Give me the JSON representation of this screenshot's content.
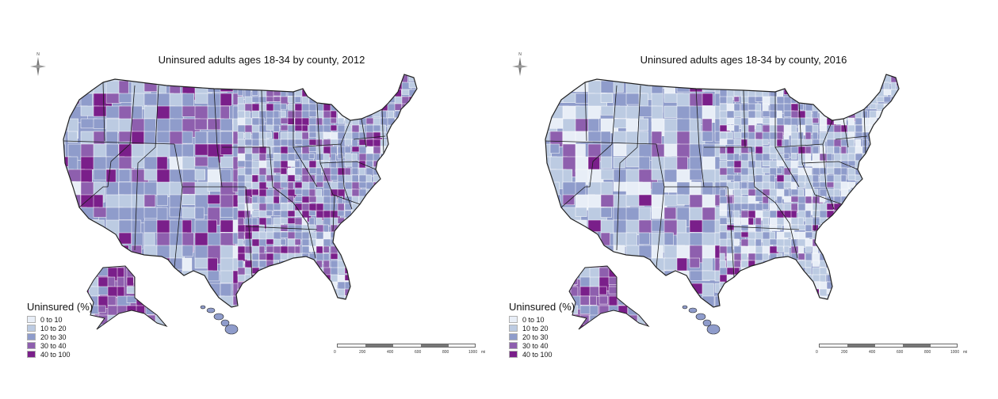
{
  "panels": [
    {
      "title": "Uninsured adults ages 18-34 by county, 2012",
      "north_label": "N",
      "legend_title": "Uninsured (%)",
      "legend_items": [
        {
          "label": "0 to 10",
          "color": "#e8eef7"
        },
        {
          "label": "10 to 20",
          "color": "#bccbe2"
        },
        {
          "label": "20 to 30",
          "color": "#8f9ccb"
        },
        {
          "label": "30 to 40",
          "color": "#8e5fae"
        },
        {
          "label": "40 to 100",
          "color": "#7a1f8a"
        }
      ],
      "scale_labels": [
        "0",
        "200",
        "400",
        "600",
        "800",
        "1000",
        "mi"
      ],
      "county_mix": [
        0.03,
        0.27,
        0.34,
        0.2,
        0.16
      ]
    },
    {
      "title": "Uninsured adults ages 18-34 by county, 2016",
      "north_label": "N",
      "legend_title": "Uninsured (%)",
      "legend_items": [
        {
          "label": "0 to 10",
          "color": "#e8eef7"
        },
        {
          "label": "10 to 20",
          "color": "#bccbe2"
        },
        {
          "label": "20 to 30",
          "color": "#8f9ccb"
        },
        {
          "label": "30 to 40",
          "color": "#8e5fae"
        },
        {
          "label": "40 to 100",
          "color": "#7a1f8a"
        }
      ],
      "scale_labels": [
        "0",
        "200",
        "400",
        "600",
        "800",
        "1000",
        "mi"
      ],
      "county_mix": [
        0.18,
        0.4,
        0.27,
        0.1,
        0.05
      ]
    }
  ]
}
